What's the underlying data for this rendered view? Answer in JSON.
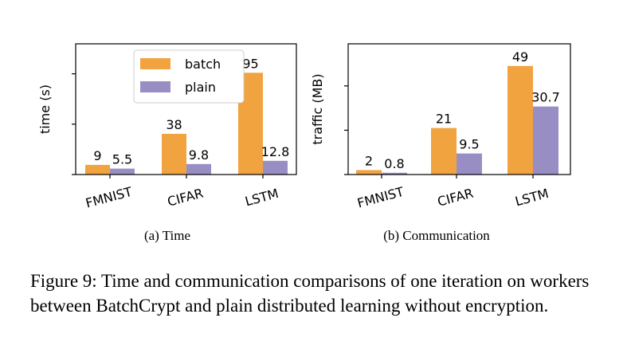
{
  "colors": {
    "batch": "#f1a340",
    "plain": "#998ec3"
  },
  "legend": {
    "batch_label": "batch",
    "plain_label": "plain"
  },
  "caption": "Figure 9: Time and communication comparisons of one iteration on workers between BatchCrypt and plain distributed learning without encryption.",
  "chart_data": [
    {
      "type": "bar",
      "subcaption": "(a) Time",
      "categories": [
        "FMNIST",
        "CIFAR",
        "LSTM"
      ],
      "series": [
        {
          "name": "batch",
          "values": [
            9,
            38,
            95
          ],
          "labels": [
            "9",
            "38",
            "95"
          ]
        },
        {
          "name": "plain",
          "values": [
            5.5,
            9.8,
            12.8
          ],
          "labels": [
            "5.5",
            "9.8",
            "12.8"
          ]
        }
      ],
      "xlabel": "",
      "ylabel": "time (s)",
      "ylim": [
        0,
        122
      ],
      "yticks": [
        0,
        47,
        94
      ],
      "ytick_labels_shown": false,
      "legend_position": "upper-center",
      "grid": false
    },
    {
      "type": "bar",
      "subcaption": "(b) Communication",
      "categories": [
        "FMNIST",
        "CIFAR",
        "LSTM"
      ],
      "series": [
        {
          "name": "batch",
          "values": [
            2,
            21,
            49
          ],
          "labels": [
            "2",
            "21",
            "49"
          ]
        },
        {
          "name": "plain",
          "values": [
            0.8,
            9.5,
            30.7
          ],
          "labels": [
            "0.8",
            "9.5",
            "30.7"
          ]
        }
      ],
      "xlabel": "",
      "ylabel": "traffic (MB)",
      "ylim": [
        0,
        59
      ],
      "yticks": [
        0,
        20,
        40
      ],
      "ytick_labels_shown": false,
      "grid": false
    }
  ]
}
